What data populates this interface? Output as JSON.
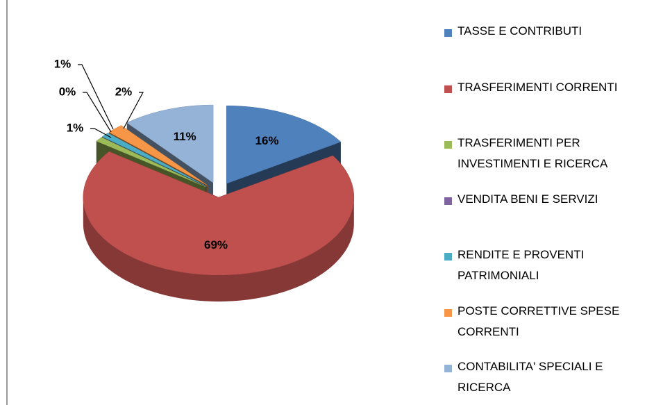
{
  "chart_data": {
    "type": "pie3d",
    "categories": [
      "TASSE E CONTRIBUTI",
      "TRASFERIMENTI CORRENTI",
      "TRASFERIMENTI PER INVESTIMENTI E RICERCA",
      "VENDITA BENI E SERVIZI",
      "RENDITE E PROVENTI PATRIMONIALI",
      "POSTE CORRETTIVE SPESE CORRENTI",
      "CONTABILITA' SPECIALI E RICERCA"
    ],
    "values": [
      16,
      69,
      1,
      0,
      1,
      2,
      11
    ],
    "value_labels": [
      "16%",
      "69%",
      "1%",
      "0%",
      "1%",
      "2%",
      "11%"
    ],
    "colors": [
      "#4f81bd",
      "#c0504d",
      "#9bbb59",
      "#8064a2",
      "#4bacc6",
      "#f79646",
      "#95b3d7"
    ],
    "legend": "right"
  }
}
